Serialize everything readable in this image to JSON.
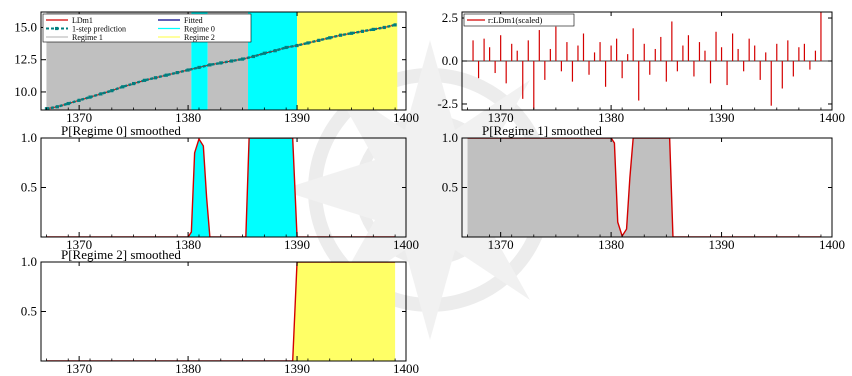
{
  "chart_data": [
    {
      "id": "fit",
      "type": "line",
      "title": "",
      "xlim": [
        1366.5,
        1400
      ],
      "ylim": [
        8.6,
        16.2
      ],
      "xticks": [
        1370,
        1380,
        1390,
        1400
      ],
      "yticks": [
        10.0,
        12.5,
        15.0
      ],
      "ytick_labels": [
        "10.0",
        "12.5",
        "15.0"
      ],
      "regime_bands": [
        {
          "regime": "Regime 1",
          "from": 1367,
          "to": 1380.3,
          "color": "#c0c0c0"
        },
        {
          "regime": "Regime 0",
          "from": 1380.3,
          "to": 1381.8,
          "color": "#00ffff"
        },
        {
          "regime": "Regime 1",
          "from": 1381.8,
          "to": 1385.5,
          "color": "#c0c0c0"
        },
        {
          "regime": "Regime 0",
          "from": 1385.5,
          "to": 1390.0,
          "color": "#00ffff"
        },
        {
          "regime": "Regime 2",
          "from": 1390.0,
          "to": 1399.2,
          "color": "#ffff66"
        }
      ],
      "legend": {
        "placement": "top-left",
        "entries": [
          {
            "label": "LDm1",
            "color": "#d40000",
            "style": "line"
          },
          {
            "label": "1-step prediction",
            "color": "#007f7f",
            "style": "dashed-marker"
          },
          {
            "label": "Regime 1",
            "color": "#c0c0c0",
            "style": "line"
          },
          {
            "label": "Fitted",
            "color": "#00008b",
            "style": "line"
          },
          {
            "label": "Regime 0",
            "color": "#00ffff",
            "style": "line"
          },
          {
            "label": "Regime 2",
            "color": "#ffff66",
            "style": "line"
          }
        ]
      },
      "series": [
        {
          "name": "LDm1",
          "color": "#d40000",
          "x": [
            1367,
            1368,
            1369,
            1370,
            1371,
            1372,
            1373,
            1374,
            1375,
            1376,
            1377,
            1378,
            1379,
            1380,
            1381,
            1382,
            1383,
            1384,
            1385,
            1386,
            1387,
            1388,
            1389,
            1390,
            1391,
            1392,
            1393,
            1394,
            1395,
            1396,
            1397,
            1398,
            1399
          ],
          "y": [
            8.7,
            8.85,
            9.1,
            9.35,
            9.6,
            9.85,
            10.1,
            10.4,
            10.65,
            10.9,
            11.1,
            11.3,
            11.5,
            11.7,
            11.9,
            12.1,
            12.25,
            12.4,
            12.55,
            12.75,
            13.0,
            13.2,
            13.45,
            13.6,
            13.8,
            14.0,
            14.2,
            14.4,
            14.55,
            14.7,
            14.85,
            15.0,
            15.2
          ]
        },
        {
          "name": "1-step prediction",
          "color": "#007f7f",
          "x": [
            1367,
            1368,
            1369,
            1370,
            1371,
            1372,
            1373,
            1374,
            1375,
            1376,
            1377,
            1378,
            1379,
            1380,
            1381,
            1382,
            1383,
            1384,
            1385,
            1386,
            1387,
            1388,
            1389,
            1390,
            1391,
            1392,
            1393,
            1394,
            1395,
            1396,
            1397,
            1398,
            1399
          ],
          "y": [
            8.7,
            8.85,
            9.1,
            9.35,
            9.6,
            9.85,
            10.1,
            10.4,
            10.65,
            10.9,
            11.1,
            11.3,
            11.5,
            11.7,
            11.9,
            12.1,
            12.25,
            12.4,
            12.55,
            12.75,
            13.0,
            13.2,
            13.45,
            13.6,
            13.8,
            14.0,
            14.2,
            14.4,
            14.55,
            14.7,
            14.85,
            15.0,
            15.2
          ]
        }
      ]
    },
    {
      "id": "residuals",
      "type": "bar",
      "title": "",
      "xlim": [
        1366.5,
        1400
      ],
      "ylim": [
        -2.85,
        2.85
      ],
      "xticks": [
        1370,
        1380,
        1390,
        1400
      ],
      "yticks": [
        -2.5,
        0.0,
        2.5
      ],
      "ytick_labels": [
        "-2.5",
        "0.0",
        "2.5"
      ],
      "legend": {
        "placement": "top-left",
        "entries": [
          {
            "label": "r:LDm1(scaled)",
            "color": "#d40000",
            "style": "line"
          }
        ]
      },
      "series": [
        {
          "name": "r:LDm1(scaled)",
          "color": "#d40000",
          "x": [
            1367.5,
            1368,
            1368.5,
            1369,
            1369.5,
            1370,
            1370.5,
            1371,
            1371.5,
            1372,
            1372.5,
            1373,
            1373.5,
            1374,
            1374.5,
            1375,
            1375.5,
            1376,
            1376.5,
            1377,
            1377.5,
            1378,
            1378.5,
            1379,
            1379.5,
            1380,
            1380.5,
            1381,
            1381.5,
            1382,
            1382.5,
            1383,
            1383.5,
            1384,
            1384.5,
            1385,
            1385.5,
            1386,
            1386.5,
            1387,
            1387.5,
            1388,
            1388.5,
            1389,
            1389.5,
            1390,
            1390.5,
            1391,
            1391.5,
            1392,
            1392.5,
            1393,
            1393.5,
            1394,
            1394.5,
            1395,
            1395.5,
            1396,
            1396.5,
            1397,
            1397.5,
            1398,
            1398.5,
            1399
          ],
          "y": [
            1.2,
            -1.0,
            1.3,
            0.8,
            -0.7,
            1.5,
            -1.3,
            1.0,
            0.6,
            -2.2,
            1.2,
            -2.8,
            1.8,
            -1.1,
            0.7,
            2.0,
            -0.6,
            1.1,
            -1.2,
            0.9,
            1.6,
            -0.8,
            0.5,
            1.1,
            -1.5,
            0.9,
            1.3,
            -1.0,
            0.4,
            1.9,
            -2.3,
            1.0,
            -0.8,
            0.7,
            1.4,
            -1.2,
            2.3,
            -0.6,
            0.9,
            1.5,
            -0.9,
            1.1,
            0.6,
            -1.3,
            1.7,
            0.8,
            -1.4,
            1.6,
            0.7,
            -0.6,
            1.3,
            0.9,
            -1.1,
            0.5,
            -2.6,
            1.0,
            -1.6,
            1.2,
            -0.9,
            0.8,
            1.0,
            -0.5,
            0.6,
            2.9
          ]
        }
      ]
    },
    {
      "id": "p_regime0",
      "type": "area",
      "title": "P[Regime 0] smoothed",
      "xlim": [
        1366.5,
        1400
      ],
      "ylim": [
        0,
        1.0
      ],
      "xticks": [
        1370,
        1380,
        1390,
        1400
      ],
      "yticks": [
        0.5,
        1.0
      ],
      "ytick_labels": [
        "0.5",
        "1.0"
      ],
      "fill_color": "#00ffff",
      "series": [
        {
          "name": "P[Regime 0] smoothed",
          "color": "#d40000",
          "x": [
            1367,
            1380,
            1380.3,
            1380.6,
            1381.0,
            1381.4,
            1381.7,
            1382.0,
            1385.3,
            1385.6,
            1389.6,
            1390.0,
            1399
          ],
          "y": [
            0,
            0,
            0.05,
            0.85,
            0.99,
            0.92,
            0.4,
            0,
            0,
            1.0,
            1.0,
            0,
            0
          ]
        }
      ]
    },
    {
      "id": "p_regime1",
      "type": "area",
      "title": "P[Regime 1] smoothed",
      "xlim": [
        1366.5,
        1400
      ],
      "ylim": [
        0,
        1.0
      ],
      "xticks": [
        1370,
        1380,
        1390,
        1400
      ],
      "yticks": [
        0.5,
        1.0
      ],
      "ytick_labels": [
        "0.5",
        "1.0"
      ],
      "fill_color": "#c0c0c0",
      "series": [
        {
          "name": "P[Regime 1] smoothed",
          "color": "#d40000",
          "x": [
            1367,
            1380,
            1380.3,
            1380.6,
            1381.0,
            1381.4,
            1381.7,
            1382.0,
            1385.3,
            1385.6,
            1399
          ],
          "y": [
            1.0,
            1.0,
            0.95,
            0.15,
            0.01,
            0.08,
            0.6,
            1.0,
            1.0,
            0,
            0
          ]
        }
      ]
    },
    {
      "id": "p_regime2",
      "type": "area",
      "title": "P[Regime 2] smoothed",
      "xlim": [
        1366.5,
        1400
      ],
      "ylim": [
        0,
        1.0
      ],
      "xticks": [
        1370,
        1380,
        1390,
        1400
      ],
      "yticks": [
        0.5,
        1.0
      ],
      "ytick_labels": [
        "0.5",
        "1.0"
      ],
      "fill_color": "#ffff66",
      "series": [
        {
          "name": "P[Regime 2] smoothed",
          "color": "#d40000",
          "x": [
            1367,
            1389.6,
            1390.0,
            1399
          ],
          "y": [
            0,
            0,
            1.0,
            1.0
          ]
        }
      ]
    }
  ]
}
